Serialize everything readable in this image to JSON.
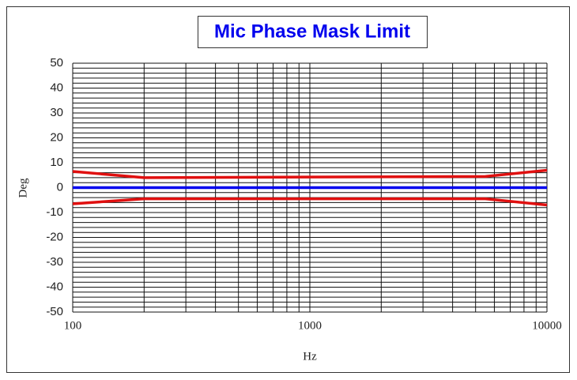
{
  "chart_data": {
    "type": "line",
    "title": "Mic Phase Mask Limit",
    "x_label": "Hz",
    "y_label": "Deg",
    "log_x": true,
    "xlim": [
      100,
      10000
    ],
    "xticks": [
      100,
      1000,
      10000
    ],
    "xminorticks": [
      200,
      300,
      400,
      500,
      600,
      700,
      800,
      900,
      2000,
      3000,
      4000,
      5000,
      6000,
      7000,
      8000,
      9000
    ],
    "ylim": [
      -50,
      50
    ],
    "yticks": [
      -50,
      -40,
      -30,
      -20,
      -10,
      0,
      10,
      20,
      30,
      40,
      50
    ],
    "yminorticks": [
      -48,
      -46,
      -44,
      -42,
      -38,
      -36,
      -34,
      -32,
      -28,
      -26,
      -24,
      -22,
      -18,
      -16,
      -14,
      -12,
      -8,
      -6,
      -4,
      -2,
      2,
      4,
      6,
      8,
      12,
      14,
      16,
      18,
      22,
      24,
      26,
      28,
      32,
      34,
      36,
      38,
      42,
      44,
      46,
      48
    ],
    "grid": true,
    "series": [
      {
        "color": "#e01010",
        "x": [
          100,
          200,
          5500,
          10000
        ],
        "values": [
          6.5,
          4,
          4.5,
          7
        ]
      },
      {
        "color": "#e01010",
        "x": [
          100,
          200,
          5500,
          10000
        ],
        "values": [
          -6.5,
          -4.5,
          -4.5,
          -7
        ]
      },
      {
        "color": "#0000ee",
        "x": [
          100,
          10000
        ],
        "values": [
          0,
          0
        ]
      }
    ]
  }
}
